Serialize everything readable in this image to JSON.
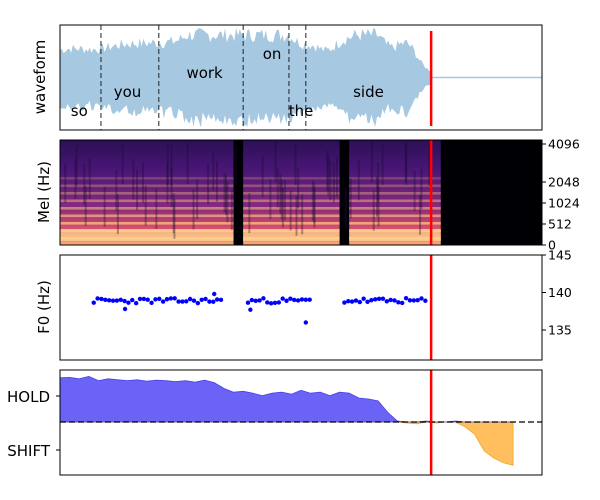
{
  "chart_data": [
    {
      "type": "area",
      "panel": "waveform",
      "ylabel": "waveform",
      "color": "#a6c8e1",
      "words": [
        {
          "text": "so",
          "t": 0.04
        },
        {
          "text": "you",
          "t": 0.14
        },
        {
          "text": "work",
          "t": 0.3
        },
        {
          "text": "on",
          "t": 0.44
        },
        {
          "text": "the",
          "t": 0.5
        },
        {
          "text": "side",
          "t": 0.64
        }
      ],
      "boundaries": [
        0.085,
        0.205,
        0.38,
        0.475,
        0.51
      ],
      "cursor": 0.77,
      "cursor_color": "#ff0000"
    },
    {
      "type": "heatmap",
      "panel": "mel",
      "ylabel": "Mel (Hz)",
      "yticks": [
        "0",
        "512",
        "1024",
        "2048",
        "4096"
      ],
      "colormap": "magma",
      "speech_segments": [
        [
          0.0,
          0.36
        ],
        [
          0.38,
          0.58
        ],
        [
          0.6,
          0.79
        ]
      ]
    },
    {
      "type": "scatter",
      "panel": "f0",
      "ylabel": "F0 (Hz)",
      "ylim": [
        131,
        145
      ],
      "yticks": [
        135,
        140,
        145
      ],
      "color": "#0000ff",
      "segments": [
        {
          "t0": 0.07,
          "t1": 0.34,
          "base": 138.9
        },
        {
          "t0": 0.39,
          "t1": 0.52,
          "base": 138.9
        },
        {
          "t0": 0.59,
          "t1": 0.76,
          "base": 138.9
        }
      ],
      "outliers": [
        {
          "t": 0.135,
          "v": 137.8
        },
        {
          "t": 0.32,
          "v": 139.8
        },
        {
          "t": 0.395,
          "v": 137.7
        },
        {
          "t": 0.51,
          "v": 136.0
        }
      ]
    },
    {
      "type": "area",
      "panel": "turn",
      "yticklabels": [
        "HOLD",
        "SHIFT"
      ],
      "hold_color": "#6a63f6",
      "shift_color": "#ffbf5e",
      "t": [
        0.0,
        0.02,
        0.04,
        0.06,
        0.08,
        0.1,
        0.12,
        0.14,
        0.16,
        0.18,
        0.2,
        0.22,
        0.24,
        0.26,
        0.28,
        0.3,
        0.32,
        0.34,
        0.36,
        0.38,
        0.4,
        0.42,
        0.44,
        0.46,
        0.48,
        0.5,
        0.52,
        0.54,
        0.56,
        0.58,
        0.6,
        0.62,
        0.64,
        0.66,
        0.68,
        0.7,
        0.72,
        0.74,
        0.76,
        0.78,
        0.8,
        0.82,
        0.84,
        0.86,
        0.88,
        0.9,
        0.92,
        0.94,
        0.96,
        0.98,
        1.0
      ],
      "values": [
        0.92,
        0.93,
        0.9,
        0.95,
        0.86,
        0.9,
        0.88,
        0.86,
        0.88,
        0.85,
        0.87,
        0.86,
        0.84,
        0.86,
        0.83,
        0.87,
        0.82,
        0.7,
        0.62,
        0.64,
        0.6,
        0.55,
        0.6,
        0.62,
        0.58,
        0.66,
        0.6,
        0.62,
        0.55,
        0.62,
        0.6,
        0.5,
        0.48,
        0.44,
        0.2,
        0.02,
        -0.02,
        -0.04,
        0.02,
        -0.02,
        0.0,
        0.02,
        -0.1,
        -0.25,
        -0.6,
        -0.75,
        -0.85,
        -0.9,
        -0.9,
        -0.91,
        -0.91
      ],
      "t_end": 0.94,
      "cursor": 0.77
    }
  ]
}
